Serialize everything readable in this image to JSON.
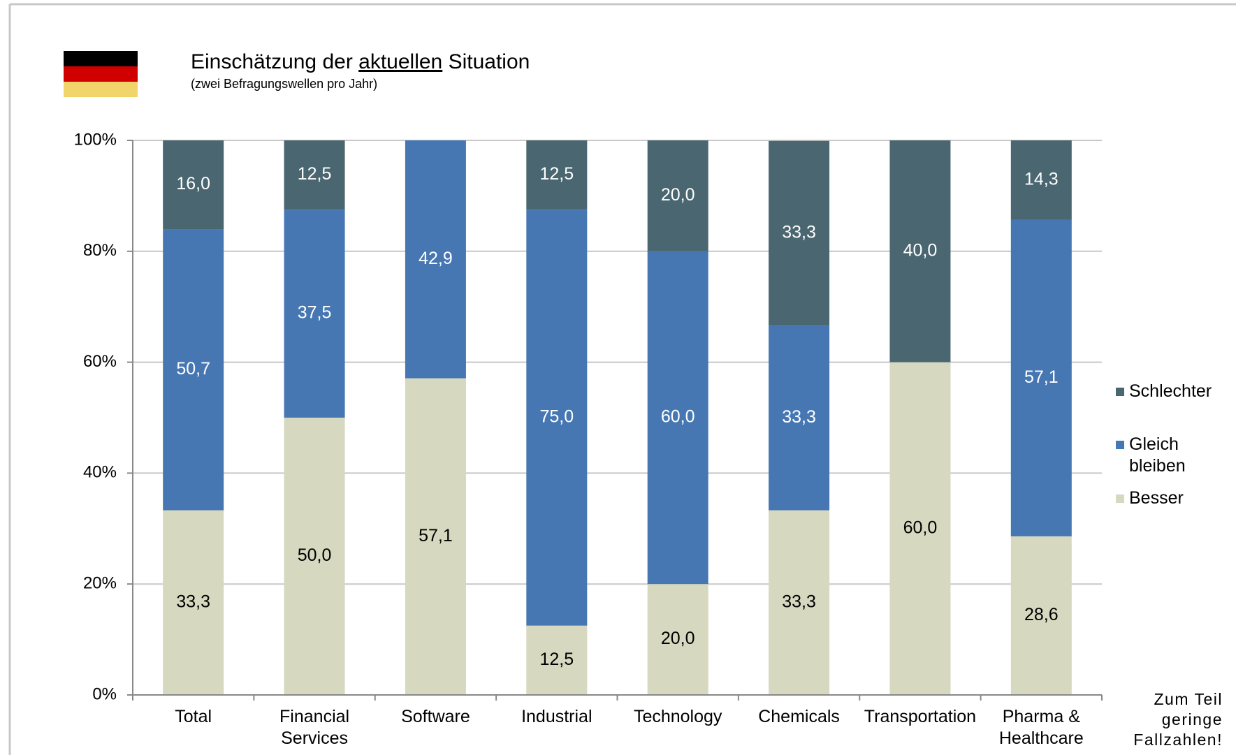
{
  "chart_data": {
    "type": "stacked_bar",
    "title": {
      "before": "Einschätzung der ",
      "underlined": "aktuellen",
      "after": " Situation"
    },
    "subtitle": "(zwei Befragungswellen pro Jahr)",
    "note": [
      "Zum Teil",
      "geringe",
      "Fallzahlen!"
    ],
    "categories": [
      "Total",
      "Financial\nServices",
      "Software",
      "Industrial",
      "Technology",
      "Chemicals",
      "Transportation",
      "Pharma &\nHealthcare"
    ],
    "series": [
      {
        "name": "Besser",
        "color": "#d6d8c0",
        "label_color": "#000000",
        "values": [
          33.3,
          50.0,
          57.1,
          12.5,
          20.0,
          33.3,
          60.0,
          28.6
        ],
        "value_labels": [
          "33,3",
          "50,0",
          "57,1",
          "12,5",
          "20,0",
          "33,3",
          "60,0",
          "28,6"
        ]
      },
      {
        "name": "Gleich\nbleiben",
        "color": "#4677b3",
        "label_color": "#ffffff",
        "values": [
          50.7,
          37.5,
          42.9,
          75.0,
          60.0,
          33.3,
          null,
          57.1
        ],
        "value_labels": [
          "50,7",
          "37,5",
          "42,9",
          "75,0",
          "60,0",
          "33,3",
          null,
          "57,1"
        ]
      },
      {
        "name": "Schlechter",
        "color": "#4a6670",
        "label_color": "#ffffff",
        "values": [
          16.0,
          12.5,
          null,
          12.5,
          20.0,
          33.3,
          40.0,
          14.3
        ],
        "value_labels": [
          "16,0",
          "12,5",
          null,
          "12,5",
          "20,0",
          "33,3",
          "40,0",
          "14,3"
        ]
      }
    ],
    "ylim": [
      0,
      100
    ],
    "yticks": [
      {
        "value": 0,
        "label": "0%"
      },
      {
        "value": 20,
        "label": "20%"
      },
      {
        "value": 40,
        "label": "40%"
      },
      {
        "value": 60,
        "label": "60%"
      },
      {
        "value": 80,
        "label": "80%"
      },
      {
        "value": 100,
        "label": "100%"
      }
    ],
    "grid": true,
    "legend": "right"
  }
}
